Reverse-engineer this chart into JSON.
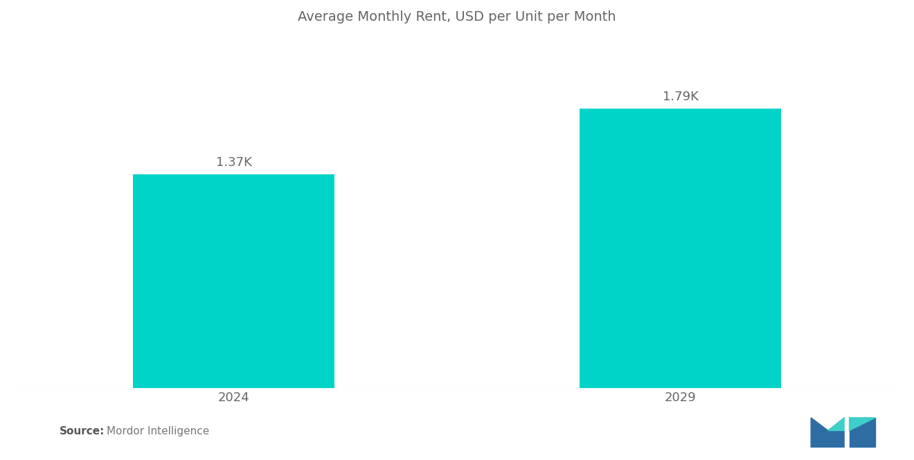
{
  "title": "Average Monthly Rent, USD per Unit per Month",
  "categories": [
    "2024",
    "2029"
  ],
  "values": [
    1370,
    1790
  ],
  "labels": [
    "1.37K",
    "1.79K"
  ],
  "bar_color": "#00D4C8",
  "background_color": "#ffffff",
  "title_color": "#666666",
  "label_color": "#666666",
  "tick_color": "#666666",
  "title_fontsize": 14,
  "label_fontsize": 13,
  "tick_fontsize": 13,
  "source_bold": "Source:",
  "source_detail": "  Mordor Intelligence",
  "ylim": [
    0,
    2200
  ],
  "bar_positions": [
    1,
    3
  ],
  "bar_width": 0.9,
  "xlim": [
    0.0,
    4.0
  ]
}
